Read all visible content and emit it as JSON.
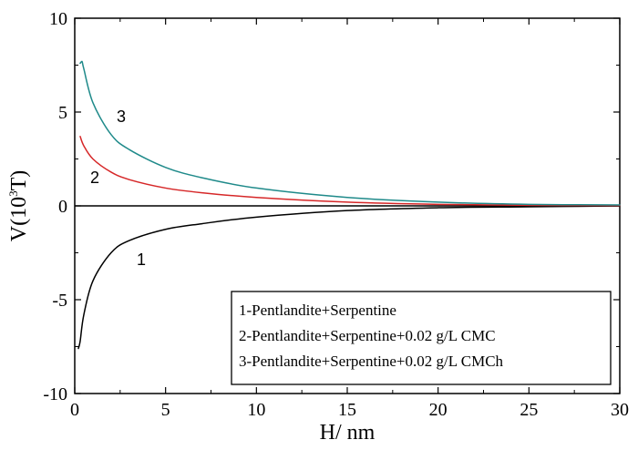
{
  "chart_data": {
    "type": "line",
    "xlabel": "H/ nm",
    "ylabel_prefix": "V(10",
    "ylabel_sup": "3",
    "ylabel_suffix": "T)",
    "xlim": [
      0,
      30
    ],
    "ylim": [
      -10,
      10
    ],
    "xticks": [
      0,
      5,
      10,
      15,
      20,
      25,
      30
    ],
    "yticks": [
      -10,
      -5,
      0,
      5,
      10
    ],
    "xtick_labels": [
      "0",
      "5",
      "10",
      "15",
      "20",
      "25",
      "30"
    ],
    "ytick_labels": [
      "-10",
      "-5",
      "0",
      "5",
      "10"
    ],
    "zero_line": true,
    "grid": false,
    "legend": {
      "position": "bottom-right",
      "entries": [
        "1-Pentlandite+Serpentine",
        "2-Pentlandite+Serpentine+0.02 g/L CMC",
        "3-Pentlandite+Serpentine+0.02 g/L CMCh"
      ]
    },
    "series": [
      {
        "label": "1",
        "color": "#000000",
        "x": [
          0.2,
          0.3,
          0.5,
          1,
          2,
          3,
          5,
          7,
          10,
          15,
          20,
          25,
          30
        ],
        "y": [
          -7.6,
          -7.2,
          -5.8,
          -4.0,
          -2.5,
          -1.85,
          -1.25,
          -0.95,
          -0.6,
          -0.25,
          -0.1,
          -0.05,
          0
        ]
      },
      {
        "label": "2",
        "color": "#d62728",
        "x": [
          0.3,
          0.5,
          1,
          2,
          3,
          5,
          7,
          10,
          15,
          20,
          25,
          30
        ],
        "y": [
          3.7,
          3.2,
          2.5,
          1.8,
          1.4,
          0.95,
          0.7,
          0.45,
          0.2,
          0.08,
          0.03,
          0.02
        ]
      },
      {
        "label": "3",
        "color": "#1f8a8a",
        "x": [
          0.3,
          0.4,
          0.5,
          1,
          2,
          3,
          5,
          7,
          10,
          15,
          20,
          25,
          30
        ],
        "y": [
          7.6,
          7.7,
          7.3,
          5.5,
          3.8,
          3.0,
          2.05,
          1.5,
          0.95,
          0.45,
          0.2,
          0.08,
          0.05
        ]
      }
    ]
  }
}
